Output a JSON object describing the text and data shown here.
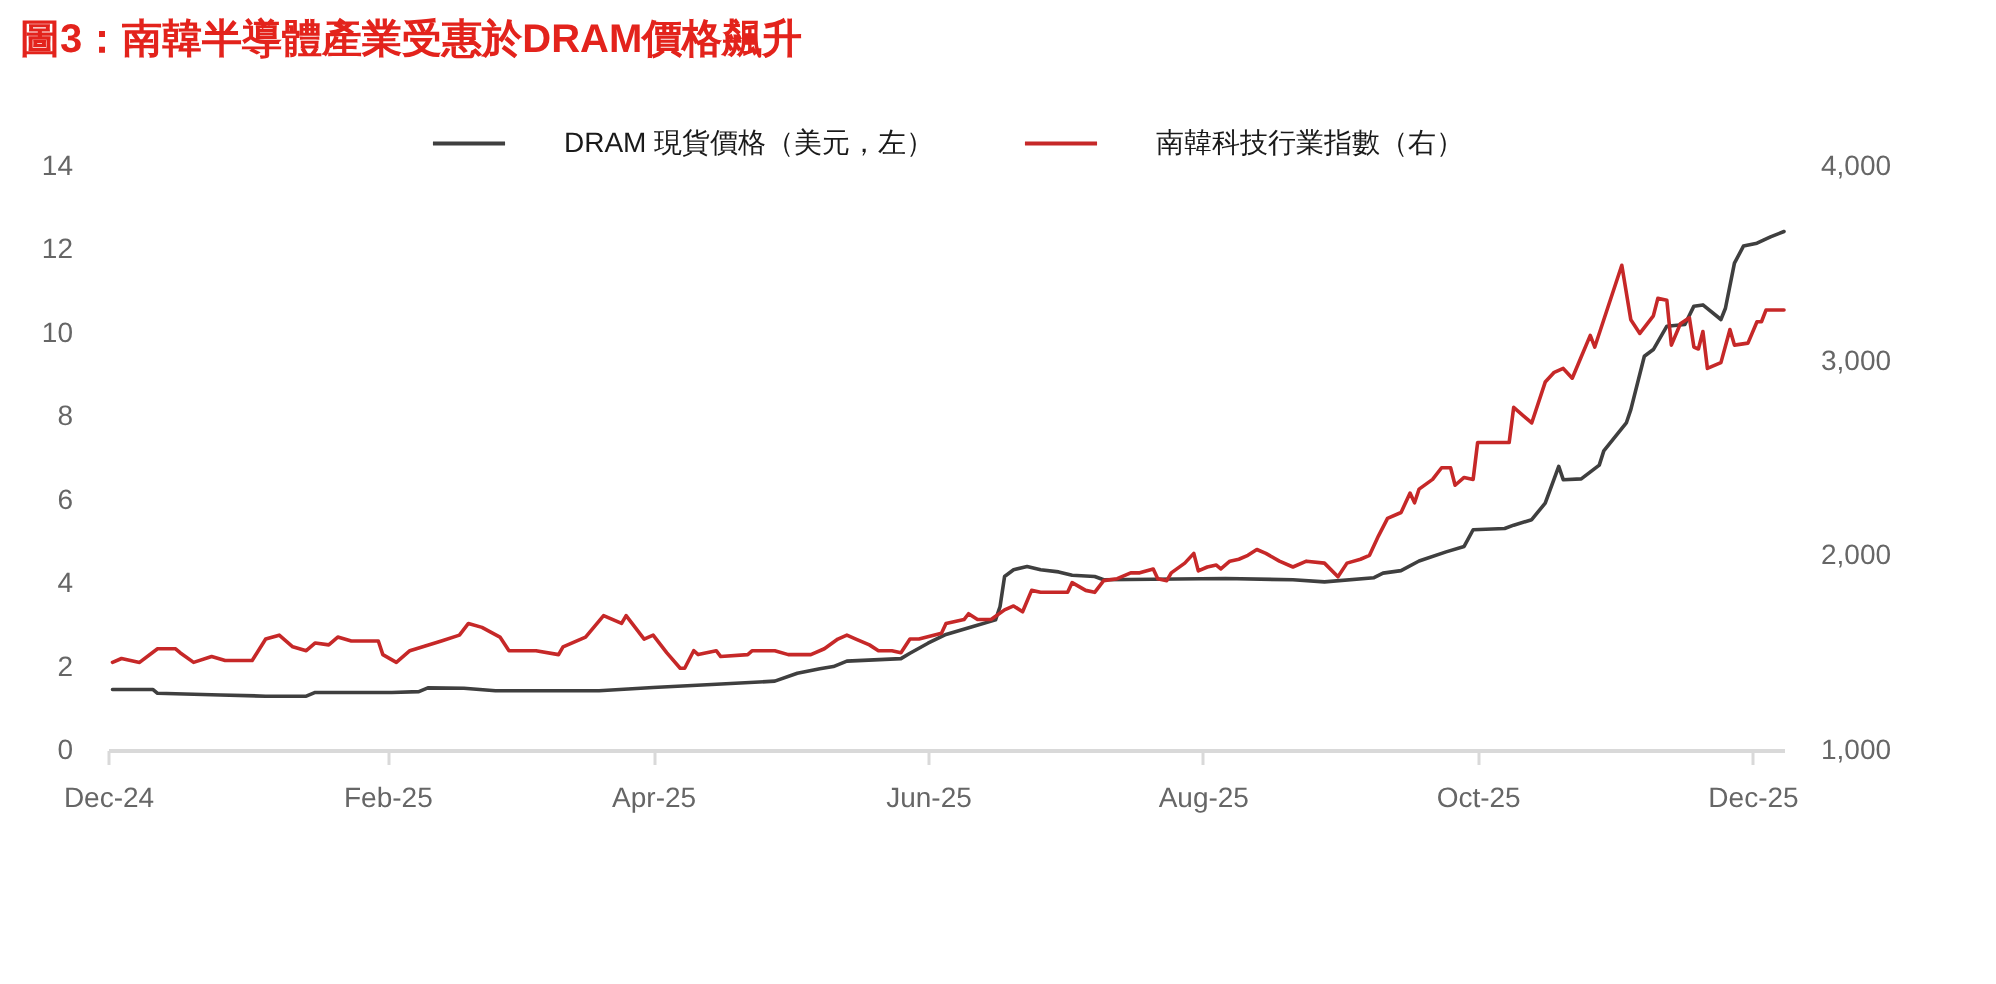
{
  "chart_data": {
    "type": "line",
    "title": "圖3：南韓半導體產業受惠於DRAM價格飆升",
    "xlim": [
      "2024-12-01",
      "2025-12-08"
    ],
    "xticks": [
      {
        "value": "2024-12-01",
        "label": "Dec-24"
      },
      {
        "value": "2025-02-01",
        "label": "Feb-25"
      },
      {
        "value": "2025-04-01",
        "label": "Apr-25"
      },
      {
        "value": "2025-06-01",
        "label": "Jun-25"
      },
      {
        "value": "2025-08-01",
        "label": "Aug-25"
      },
      {
        "value": "2025-10-01",
        "label": "Oct-25"
      },
      {
        "value": "2025-12-01",
        "label": "Dec-25"
      }
    ],
    "ylim": [
      0,
      14
    ],
    "yticks": [
      0,
      2,
      4,
      6,
      8,
      10,
      12,
      14
    ],
    "y2lim": [
      1000,
      4000
    ],
    "y2ticks": [
      {
        "value": 1000,
        "label": "1,000"
      },
      {
        "value": 2000,
        "label": "2,000"
      },
      {
        "value": 3000,
        "label": "3,000"
      },
      {
        "value": 4000,
        "label": "4,000"
      }
    ],
    "grid": false,
    "legend": "top",
    "line_style": "solid",
    "series": [
      {
        "name": "DRAM 現貨價格（美元，左）",
        "color": "#3f3f3f",
        "x": [
          "2024-12-02",
          "2024-12-11",
          "2024-12-12",
          "2024-12-26",
          "2025-01-05",
          "2025-01-14",
          "2025-01-16",
          "2025-02-02",
          "2025-02-08",
          "2025-02-10",
          "2025-02-18",
          "2025-02-25",
          "2025-03-20",
          "2025-04-01",
          "2025-04-14",
          "2025-04-28",
          "2025-05-03",
          "2025-05-08",
          "2025-05-11",
          "2025-05-14",
          "2025-05-26",
          "2025-05-28",
          "2025-06-01",
          "2025-06-05",
          "2025-06-11",
          "2025-06-16",
          "2025-06-17",
          "2025-06-18",
          "2025-06-20",
          "2025-06-23",
          "2025-06-26",
          "2025-06-30",
          "2025-07-03",
          "2025-07-08",
          "2025-07-10",
          "2025-08-06",
          "2025-08-21",
          "2025-08-28",
          "2025-09-08",
          "2025-09-10",
          "2025-09-14",
          "2025-09-18",
          "2025-09-24",
          "2025-09-28",
          "2025-09-30",
          "2025-10-07",
          "2025-10-09",
          "2025-10-13",
          "2025-10-16",
          "2025-10-19",
          "2025-10-20",
          "2025-10-24",
          "2025-10-28",
          "2025-10-29",
          "2025-11-03",
          "2025-11-04",
          "2025-11-07",
          "2025-11-09",
          "2025-11-12",
          "2025-11-16",
          "2025-11-18",
          "2025-11-20",
          "2025-11-24",
          "2025-11-25",
          "2025-11-27",
          "2025-11-29",
          "2025-12-02",
          "2025-12-05",
          "2025-12-08"
        ],
        "values": [
          1.45,
          1.45,
          1.36,
          1.32,
          1.29,
          1.29,
          1.38,
          1.38,
          1.4,
          1.49,
          1.48,
          1.42,
          1.42,
          1.5,
          1.57,
          1.65,
          1.84,
          1.95,
          2.0,
          2.13,
          2.19,
          2.32,
          2.56,
          2.77,
          2.96,
          3.12,
          3.44,
          4.16,
          4.32,
          4.4,
          4.32,
          4.27,
          4.19,
          4.16,
          4.08,
          4.11,
          4.08,
          4.03,
          4.13,
          4.24,
          4.3,
          4.53,
          4.75,
          4.88,
          5.28,
          5.31,
          5.39,
          5.52,
          5.92,
          6.8,
          6.48,
          6.5,
          6.83,
          7.17,
          7.84,
          8.16,
          9.44,
          9.6,
          10.16,
          10.2,
          10.64,
          10.67,
          10.32,
          10.59,
          11.67,
          12.08,
          12.15,
          12.3,
          12.43
        ]
      },
      {
        "name": "南韓科技行業指數（右）",
        "color": "#c62828",
        "axis": "y2",
        "x": [
          "2024-12-02",
          "2024-12-04",
          "2024-12-08",
          "2024-12-12",
          "2024-12-16",
          "2024-12-17",
          "2024-12-20",
          "2024-12-24",
          "2024-12-27",
          "2025-01-02",
          "2025-01-05",
          "2025-01-08",
          "2025-01-11",
          "2025-01-14",
          "2025-01-16",
          "2025-01-19",
          "2025-01-21",
          "2025-01-24",
          "2025-01-30",
          "2025-01-31",
          "2025-02-03",
          "2025-02-06",
          "2025-02-13",
          "2025-02-17",
          "2025-02-19",
          "2025-02-22",
          "2025-02-26",
          "2025-02-28",
          "2025-03-04",
          "2025-03-06",
          "2025-03-11",
          "2025-03-12",
          "2025-03-17",
          "2025-03-21",
          "2025-03-25",
          "2025-03-26",
          "2025-03-28",
          "2025-03-30",
          "2025-04-01",
          "2025-04-04",
          "2025-04-07",
          "2025-04-08",
          "2025-04-10",
          "2025-04-11",
          "2025-04-15",
          "2025-04-16",
          "2025-04-22",
          "2025-04-23",
          "2025-04-28",
          "2025-05-01",
          "2025-05-06",
          "2025-05-09",
          "2025-05-12",
          "2025-05-14",
          "2025-05-16",
          "2025-05-19",
          "2025-05-21",
          "2025-05-24",
          "2025-05-26",
          "2025-05-28",
          "2025-05-30",
          "2025-06-04",
          "2025-06-05",
          "2025-06-09",
          "2025-06-10",
          "2025-06-12",
          "2025-06-15",
          "2025-06-18",
          "2025-06-20",
          "2025-06-22",
          "2025-06-24",
          "2025-06-26",
          "2025-07-02",
          "2025-07-03",
          "2025-07-06",
          "2025-07-08",
          "2025-07-10",
          "2025-07-13",
          "2025-07-16",
          "2025-07-18",
          "2025-07-21",
          "2025-07-22",
          "2025-07-24",
          "2025-07-25",
          "2025-07-28",
          "2025-07-30",
          "2025-07-31",
          "2025-08-02",
          "2025-08-04",
          "2025-08-05",
          "2025-08-07",
          "2025-08-09",
          "2025-08-11",
          "2025-08-13",
          "2025-08-15",
          "2025-08-18",
          "2025-08-21",
          "2025-08-24",
          "2025-08-28",
          "2025-08-31",
          "2025-09-02",
          "2025-09-05",
          "2025-09-07",
          "2025-09-09",
          "2025-09-11",
          "2025-09-14",
          "2025-09-16",
          "2025-09-17",
          "2025-09-18",
          "2025-09-21",
          "2025-09-23",
          "2025-09-25",
          "2025-09-26",
          "2025-09-28",
          "2025-09-30",
          "2025-10-01",
          "2025-10-08",
          "2025-10-09",
          "2025-10-13",
          "2025-10-16",
          "2025-10-18",
          "2025-10-20",
          "2025-10-22",
          "2025-10-24",
          "2025-10-26",
          "2025-10-27",
          "2025-10-29",
          "2025-11-02",
          "2025-11-04",
          "2025-11-06",
          "2025-11-09",
          "2025-11-10",
          "2025-11-12",
          "2025-11-13",
          "2025-11-15",
          "2025-11-17",
          "2025-11-18",
          "2025-11-19",
          "2025-11-20",
          "2025-11-21",
          "2025-11-24",
          "2025-11-26",
          "2025-11-27",
          "2025-11-30",
          "2025-12-02",
          "2025-12-03",
          "2025-12-04",
          "2025-12-08"
        ],
        "values": [
          1450,
          1470,
          1450,
          1520,
          1520,
          1500,
          1450,
          1480,
          1460,
          1460,
          1570,
          1590,
          1530,
          1510,
          1550,
          1540,
          1580,
          1560,
          1560,
          1490,
          1450,
          1510,
          1560,
          1590,
          1650,
          1630,
          1580,
          1510,
          1510,
          1510,
          1490,
          1530,
          1580,
          1690,
          1650,
          1690,
          1630,
          1570,
          1590,
          1500,
          1420,
          1420,
          1510,
          1490,
          1510,
          1480,
          1490,
          1510,
          1510,
          1490,
          1490,
          1520,
          1570,
          1590,
          1570,
          1540,
          1510,
          1510,
          1500,
          1570,
          1570,
          1600,
          1650,
          1670,
          1700,
          1670,
          1670,
          1720,
          1740,
          1710,
          1820,
          1810,
          1810,
          1860,
          1820,
          1810,
          1870,
          1880,
          1910,
          1910,
          1930,
          1880,
          1870,
          1910,
          1960,
          2010,
          1920,
          1940,
          1950,
          1930,
          1970,
          1980,
          2000,
          2030,
          2010,
          1970,
          1940,
          1970,
          1960,
          1890,
          1960,
          1980,
          2000,
          2100,
          2190,
          2220,
          2320,
          2270,
          2340,
          2390,
          2450,
          2450,
          2360,
          2400,
          2390,
          2580,
          2580,
          2760,
          2680,
          2890,
          2940,
          2960,
          2910,
          3020,
          3130,
          3070,
          3210,
          3490,
          3210,
          3140,
          3230,
          3320,
          3310,
          3080,
          3190,
          3220,
          3070,
          3060,
          3150,
          2960,
          2990,
          3160,
          3080,
          3090,
          3200,
          3200,
          3260,
          3260
        ]
      }
    ]
  }
}
